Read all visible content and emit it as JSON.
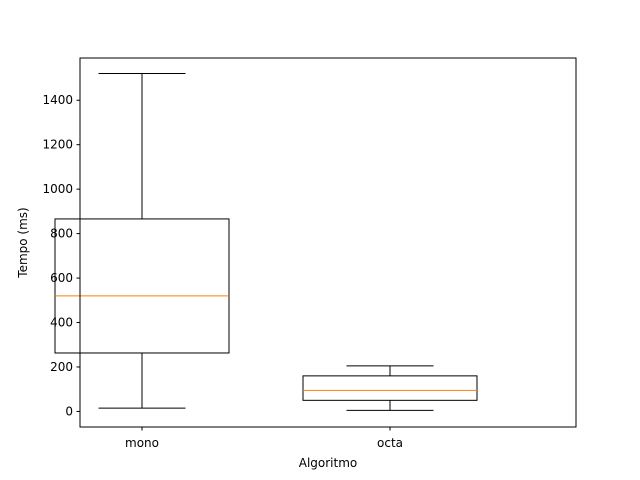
{
  "chart_data": {
    "type": "box",
    "title": "",
    "xlabel": "Algoritmo",
    "ylabel": "Tempo (ms)",
    "categories": [
      "mono",
      "octa"
    ],
    "boxes": [
      {
        "category": "mono",
        "whisker_low": 15,
        "q1": 263,
        "median": 520,
        "q3": 866,
        "whisker_high": 1520
      },
      {
        "category": "octa",
        "whisker_low": 5,
        "q1": 50,
        "median": 95,
        "q3": 160,
        "whisker_high": 205
      }
    ],
    "yticks": [
      0,
      200,
      400,
      600,
      800,
      1000,
      1200,
      1400
    ],
    "ylim": [
      -70,
      1590
    ],
    "grid": false,
    "legend": "none",
    "colors": {
      "box": "#000000",
      "median": "#ff7f0e"
    }
  }
}
